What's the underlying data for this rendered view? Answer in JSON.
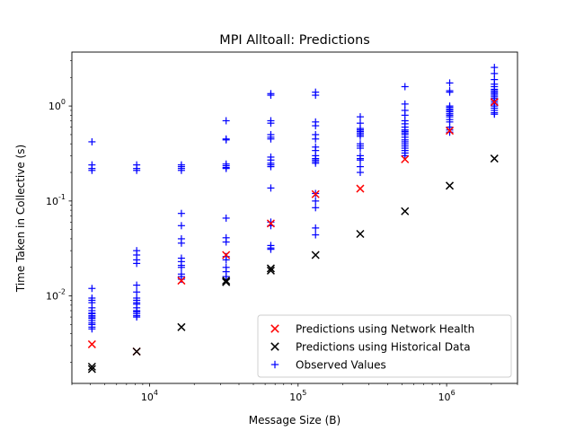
{
  "chart_data": {
    "type": "scatter",
    "title": "MPI Alltoall: Predictions",
    "xlabel": "Message Size (B)",
    "ylabel": "Time Taken in Collective (s)",
    "xscale": "log",
    "yscale": "log",
    "xlim": [
      3000,
      3000000
    ],
    "ylim": [
      0.0012,
      3.7
    ],
    "x_ticks": [
      {
        "value": 10000,
        "label": "10^4"
      },
      {
        "value": 100000,
        "label": "10^5"
      },
      {
        "value": 1000000,
        "label": "10^6"
      }
    ],
    "y_ticks": [
      {
        "value": 0.01,
        "label": "10^-2"
      },
      {
        "value": 0.1,
        "label": "10^-1"
      },
      {
        "value": 1,
        "label": "10^0"
      }
    ],
    "grid": false,
    "legend_position": "lower right",
    "series": [
      {
        "name": "Predictions using Network Health",
        "marker": "x",
        "color": "#ff0000",
        "points": [
          [
            4096,
            0.0031
          ],
          [
            8192,
            0.0026
          ],
          [
            16384,
            0.0145
          ],
          [
            32768,
            0.027
          ],
          [
            65536,
            0.058
          ],
          [
            131072,
            0.118
          ],
          [
            262144,
            0.135
          ],
          [
            524288,
            0.275
          ],
          [
            1048576,
            0.55
          ],
          [
            2097152,
            1.1
          ]
        ]
      },
      {
        "name": "Predictions using Historical Data",
        "marker": "x",
        "color": "#000000",
        "points": [
          [
            4096,
            0.0018
          ],
          [
            4096,
            0.0017
          ],
          [
            8192,
            0.0026
          ],
          [
            16384,
            0.0047
          ],
          [
            32768,
            0.0145
          ],
          [
            32768,
            0.014
          ],
          [
            65536,
            0.0195
          ],
          [
            65536,
            0.0185
          ],
          [
            131072,
            0.027
          ],
          [
            262144,
            0.045
          ],
          [
            524288,
            0.078
          ],
          [
            1048576,
            0.145
          ],
          [
            2097152,
            0.28
          ]
        ]
      },
      {
        "name": "Observed Values",
        "marker": "+",
        "color": "#0000ff",
        "points": [
          [
            4096,
            0.42
          ],
          [
            4096,
            0.24
          ],
          [
            4096,
            0.22
          ],
          [
            4096,
            0.21
          ],
          [
            4096,
            0.012
          ],
          [
            4096,
            0.0095
          ],
          [
            4096,
            0.009
          ],
          [
            4096,
            0.0085
          ],
          [
            4096,
            0.0075
          ],
          [
            4096,
            0.007
          ],
          [
            4096,
            0.0066
          ],
          [
            4096,
            0.0065
          ],
          [
            4096,
            0.0062
          ],
          [
            4096,
            0.006
          ],
          [
            4096,
            0.0058
          ],
          [
            4096,
            0.0055
          ],
          [
            4096,
            0.0052
          ],
          [
            4096,
            0.005
          ],
          [
            4096,
            0.0047
          ],
          [
            4096,
            0.0045
          ],
          [
            8192,
            0.24
          ],
          [
            8192,
            0.22
          ],
          [
            8192,
            0.21
          ],
          [
            8192,
            0.03
          ],
          [
            8192,
            0.027
          ],
          [
            8192,
            0.024
          ],
          [
            8192,
            0.022
          ],
          [
            8192,
            0.013
          ],
          [
            8192,
            0.011
          ],
          [
            8192,
            0.0095
          ],
          [
            8192,
            0.009
          ],
          [
            8192,
            0.0085
          ],
          [
            8192,
            0.0082
          ],
          [
            8192,
            0.0075
          ],
          [
            8192,
            0.007
          ],
          [
            8192,
            0.0068
          ],
          [
            8192,
            0.0065
          ],
          [
            8192,
            0.0062
          ],
          [
            8192,
            0.006
          ],
          [
            16384,
            0.24
          ],
          [
            16384,
            0.23
          ],
          [
            16384,
            0.22
          ],
          [
            16384,
            0.21
          ],
          [
            16384,
            0.074
          ],
          [
            16384,
            0.055
          ],
          [
            16384,
            0.04
          ],
          [
            16384,
            0.036
          ],
          [
            16384,
            0.025
          ],
          [
            16384,
            0.023
          ],
          [
            16384,
            0.021
          ],
          [
            16384,
            0.02
          ],
          [
            16384,
            0.017
          ],
          [
            16384,
            0.016
          ],
          [
            16384,
            0.015
          ],
          [
            32768,
            0.7
          ],
          [
            32768,
            0.45
          ],
          [
            32768,
            0.44
          ],
          [
            32768,
            0.245
          ],
          [
            32768,
            0.235
          ],
          [
            32768,
            0.225
          ],
          [
            32768,
            0.22
          ],
          [
            32768,
            0.066
          ],
          [
            32768,
            0.041
          ],
          [
            32768,
            0.037
          ],
          [
            32768,
            0.026
          ],
          [
            32768,
            0.024
          ],
          [
            32768,
            0.02
          ],
          [
            32768,
            0.018
          ],
          [
            32768,
            0.016
          ],
          [
            32768,
            0.015
          ],
          [
            65536,
            1.35
          ],
          [
            65536,
            1.3
          ],
          [
            65536,
            0.7
          ],
          [
            65536,
            0.66
          ],
          [
            65536,
            0.5
          ],
          [
            65536,
            0.47
          ],
          [
            65536,
            0.45
          ],
          [
            65536,
            0.29
          ],
          [
            65536,
            0.27
          ],
          [
            65536,
            0.25
          ],
          [
            65536,
            0.24
          ],
          [
            65536,
            0.23
          ],
          [
            65536,
            0.137
          ],
          [
            65536,
            0.06
          ],
          [
            65536,
            0.055
          ],
          [
            65536,
            0.034
          ],
          [
            65536,
            0.032
          ],
          [
            65536,
            0.031
          ],
          [
            131072,
            1.4
          ],
          [
            131072,
            1.3
          ],
          [
            131072,
            0.68
          ],
          [
            131072,
            0.62
          ],
          [
            131072,
            0.5
          ],
          [
            131072,
            0.45
          ],
          [
            131072,
            0.37
          ],
          [
            131072,
            0.34
          ],
          [
            131072,
            0.3
          ],
          [
            131072,
            0.28
          ],
          [
            131072,
            0.27
          ],
          [
            131072,
            0.26
          ],
          [
            131072,
            0.25
          ],
          [
            131072,
            0.12
          ],
          [
            131072,
            0.1
          ],
          [
            131072,
            0.085
          ],
          [
            131072,
            0.052
          ],
          [
            131072,
            0.044
          ],
          [
            262144,
            0.77
          ],
          [
            262144,
            0.66
          ],
          [
            262144,
            0.58
          ],
          [
            262144,
            0.56
          ],
          [
            262144,
            0.54
          ],
          [
            262144,
            0.52
          ],
          [
            262144,
            0.5
          ],
          [
            262144,
            0.48
          ],
          [
            262144,
            0.4
          ],
          [
            262144,
            0.38
          ],
          [
            262144,
            0.36
          ],
          [
            262144,
            0.3
          ],
          [
            262144,
            0.28
          ],
          [
            262144,
            0.27
          ],
          [
            262144,
            0.23
          ],
          [
            262144,
            0.2
          ],
          [
            524288,
            1.6
          ],
          [
            524288,
            1.05
          ],
          [
            524288,
            0.9
          ],
          [
            524288,
            0.8
          ],
          [
            524288,
            0.7
          ],
          [
            524288,
            0.65
          ],
          [
            524288,
            0.6
          ],
          [
            524288,
            0.56
          ],
          [
            524288,
            0.54
          ],
          [
            524288,
            0.52
          ],
          [
            524288,
            0.5
          ],
          [
            524288,
            0.47
          ],
          [
            524288,
            0.44
          ],
          [
            524288,
            0.42
          ],
          [
            524288,
            0.4
          ],
          [
            524288,
            0.38
          ],
          [
            524288,
            0.36
          ],
          [
            524288,
            0.34
          ],
          [
            524288,
            0.32
          ],
          [
            524288,
            0.3
          ],
          [
            1048576,
            1.75
          ],
          [
            1048576,
            1.45
          ],
          [
            1048576,
            1.4
          ],
          [
            1048576,
            1.0
          ],
          [
            1048576,
            0.97
          ],
          [
            1048576,
            0.93
          ],
          [
            1048576,
            0.9
          ],
          [
            1048576,
            0.87
          ],
          [
            1048576,
            0.83
          ],
          [
            1048576,
            0.8
          ],
          [
            1048576,
            0.77
          ],
          [
            1048576,
            0.72
          ],
          [
            1048576,
            0.68
          ],
          [
            1048576,
            0.6
          ],
          [
            1048576,
            0.56
          ],
          [
            1048576,
            0.53
          ],
          [
            2097152,
            2.55
          ],
          [
            2097152,
            2.2
          ],
          [
            2097152,
            1.9
          ],
          [
            2097152,
            1.7
          ],
          [
            2097152,
            1.6
          ],
          [
            2097152,
            1.5
          ],
          [
            2097152,
            1.45
          ],
          [
            2097152,
            1.4
          ],
          [
            2097152,
            1.35
          ],
          [
            2097152,
            1.3
          ],
          [
            2097152,
            1.25
          ],
          [
            2097152,
            1.2
          ],
          [
            2097152,
            1.15
          ],
          [
            2097152,
            1.1
          ],
          [
            2097152,
            1.05
          ],
          [
            2097152,
            1.0
          ],
          [
            2097152,
            0.95
          ],
          [
            2097152,
            0.9
          ],
          [
            2097152,
            0.85
          ],
          [
            2097152,
            0.82
          ]
        ]
      }
    ]
  }
}
